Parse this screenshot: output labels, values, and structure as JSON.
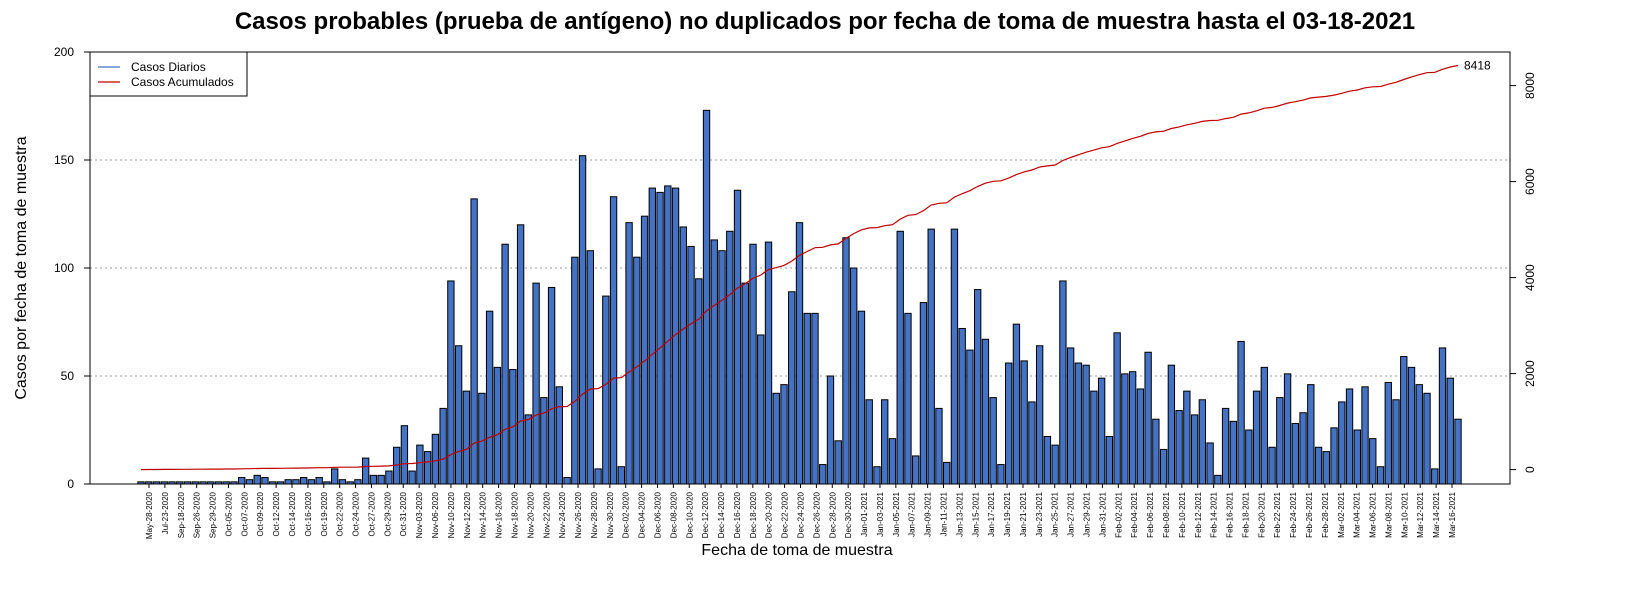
{
  "chart_data": {
    "type": "bar",
    "title": "Casos probables (prueba de antígeno) no duplicados por fecha de toma de muestra hasta el 03-18-2021",
    "xlabel": "Fecha de toma de muestra",
    "ylabel": "Casos por fecha de toma de muestra",
    "ylim": [
      0,
      200
    ],
    "y_ticks": [
      0,
      50,
      100,
      150,
      200
    ],
    "y2lim": [
      -300,
      8700
    ],
    "y2_ticks": [
      0,
      2000,
      4000,
      6000,
      8000
    ],
    "grid": "horizontal-dotted",
    "legend_position": "top-left",
    "legend": [
      {
        "label": "Casos Diarios",
        "color": "#4472C4"
      },
      {
        "label": "Casos Acumulados",
        "color": "#C00000"
      }
    ],
    "colors": {
      "bar": "#4472C4",
      "bar_outline": "#000000",
      "line": "#C00000",
      "grid": "#999999"
    },
    "final_cumulative_label": "8418",
    "tick_labels": [
      "May-28-2020",
      "Jul-23-2020",
      "Sep-18-2020",
      "Sep-26-2020",
      "Sep-29-2020",
      "Oct-05-2020",
      "Oct-07-2020",
      "Oct-09-2020",
      "Oct-12-2020",
      "Oct-14-2020",
      "Oct-16-2020",
      "Oct-19-2020",
      "Oct-22-2020",
      "Oct-24-2020",
      "Oct-27-2020",
      "Oct-29-2020",
      "Oct-31-2020",
      "Nov-03-2020",
      "Nov-06-2020",
      "Nov-10-2020",
      "Nov-12-2020",
      "Nov-14-2020",
      "Nov-16-2020",
      "Nov-18-2020",
      "Nov-20-2020",
      "Nov-22-2020",
      "Nov-24-2020",
      "Nov-26-2020",
      "Nov-28-2020",
      "Nov-30-2020",
      "Dec-02-2020",
      "Dec-04-2020",
      "Dec-06-2020",
      "Dec-08-2020",
      "Dec-10-2020",
      "Dec-12-2020",
      "Dec-14-2020",
      "Dec-16-2020",
      "Dec-18-2020",
      "Dec-20-2020",
      "Dec-22-2020",
      "Dec-24-2020",
      "Dec-26-2020",
      "Dec-28-2020",
      "Dec-30-2020",
      "Jan-01-2021",
      "Jan-03-2021",
      "Jan-05-2021",
      "Jan-07-2021",
      "Jan-09-2021",
      "Jan-11-2021",
      "Jan-13-2021",
      "Jan-15-2021",
      "Jan-17-2021",
      "Jan-19-2021",
      "Jan-21-2021",
      "Jan-23-2021",
      "Jan-25-2021",
      "Jan-27-2021",
      "Jan-29-2021",
      "Jan-31-2021",
      "Feb-02-2021",
      "Feb-04-2021",
      "Feb-06-2021",
      "Feb-08-2021",
      "Feb-10-2021",
      "Feb-12-2021",
      "Feb-14-2021",
      "Feb-16-2021",
      "Feb-18-2021",
      "Feb-20-2021",
      "Feb-22-2021",
      "Feb-24-2021",
      "Feb-26-2021",
      "Feb-28-2021",
      "Mar-02-2021",
      "Mar-04-2021",
      "Mar-06-2021",
      "Mar-08-2021",
      "Mar-10-2021",
      "Mar-12-2021",
      "Mar-14-2021",
      "Mar-16-2021"
    ],
    "values": [
      1,
      1,
      1,
      1,
      1,
      1,
      1,
      1,
      1,
      1,
      1,
      1,
      1,
      3,
      2,
      4,
      3,
      1,
      1,
      2,
      2,
      3,
      2,
      3,
      1,
      7,
      2,
      1,
      2,
      12,
      4,
      4,
      6,
      17,
      27,
      6,
      18,
      15,
      23,
      35,
      94,
      64,
      43,
      132,
      42,
      80,
      54,
      111,
      53,
      120,
      32,
      93,
      40,
      91,
      45,
      3,
      105,
      152,
      108,
      7,
      87,
      133,
      8,
      121,
      105,
      124,
      137,
      135,
      138,
      137,
      119,
      110,
      95,
      173,
      113,
      108,
      117,
      136,
      93,
      111,
      69,
      112,
      42,
      46,
      89,
      121,
      79,
      79,
      9,
      50,
      20,
      114,
      100,
      80,
      39,
      8,
      39,
      21,
      117,
      79,
      13,
      84,
      118,
      35,
      10,
      118,
      72,
      62,
      90,
      67,
      40,
      9,
      56,
      74,
      57,
      38,
      64,
      22,
      18,
      94,
      63,
      56,
      55,
      43,
      49,
      22,
      70,
      51,
      52,
      44,
      61,
      30,
      16,
      55,
      34,
      43,
      32,
      39,
      19,
      4,
      35,
      29,
      66,
      25,
      43,
      54,
      17,
      40,
      51,
      28,
      33,
      46,
      17,
      15,
      26,
      38,
      44,
      25,
      45,
      21,
      8,
      47,
      39,
      59,
      54,
      46,
      42,
      7,
      63,
      49,
      30
    ],
    "cumulative_final": 8418
  }
}
